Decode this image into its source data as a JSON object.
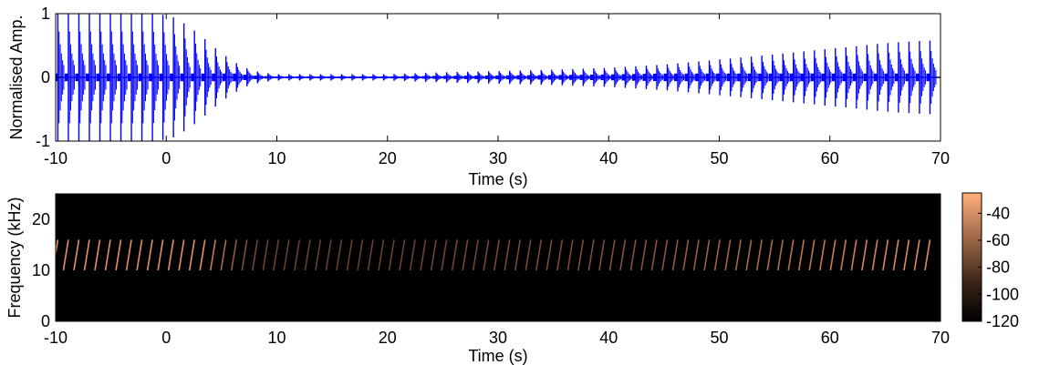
{
  "chart_data": [
    {
      "type": "line",
      "ylabel": "Normalised Amp.",
      "xlabel": "Time (s)",
      "xlim": [
        -10,
        70
      ],
      "ylim": [
        -1,
        1
      ],
      "xticks": [
        -10,
        0,
        10,
        20,
        30,
        40,
        50,
        60,
        70
      ],
      "xtick_labels": [
        "-10",
        "0",
        "10",
        "20",
        "30",
        "40",
        "50",
        "60",
        "70"
      ],
      "yticks": [
        -1,
        0,
        1
      ],
      "ytick_labels": [
        "-1",
        "0",
        "1"
      ],
      "color": "#0000ff",
      "envelope": {
        "t": [
          -9.5,
          -8,
          -6,
          -4,
          -2,
          0,
          1,
          2,
          3,
          4,
          5,
          6,
          7,
          8,
          9,
          10,
          15,
          20,
          25,
          30,
          35,
          40,
          45,
          50,
          55,
          60,
          62,
          64,
          66,
          68,
          69.5
        ],
        "amp": [
          1.0,
          1.0,
          1.0,
          1.0,
          1.0,
          0.98,
          0.92,
          0.8,
          0.68,
          0.52,
          0.38,
          0.26,
          0.16,
          0.1,
          0.07,
          0.05,
          0.05,
          0.05,
          0.08,
          0.1,
          0.12,
          0.15,
          0.2,
          0.28,
          0.36,
          0.45,
          0.48,
          0.52,
          0.55,
          0.57,
          0.58
        ]
      },
      "pulse_period_s": 0.95
    },
    {
      "type": "heatmap",
      "ylabel": "Frequency (kHz)",
      "xlabel": "Time (s)",
      "xlim": [
        -10,
        70
      ],
      "ylim": [
        0,
        25
      ],
      "xticks": [
        -10,
        0,
        10,
        20,
        30,
        40,
        50,
        60,
        70
      ],
      "xtick_labels": [
        "-10",
        "0",
        "10",
        "20",
        "30",
        "40",
        "50",
        "60",
        "70"
      ],
      "yticks": [
        0,
        10,
        20
      ],
      "ytick_labels": [
        "0",
        "10",
        "20"
      ],
      "background": "#000000",
      "chirp_color": "#e8906a",
      "chirp_freq_range_khz": [
        10,
        16
      ],
      "chirp_duration_s": 0.45,
      "colorbar": {
        "range": [
          -120,
          -25
        ],
        "ticks": [
          -40,
          -60,
          -80,
          -100,
          -120
        ],
        "tick_labels": [
          "-40",
          "-60",
          "-80",
          "-100",
          "-120"
        ],
        "colors": [
          "#000000",
          "#ffb07a"
        ]
      }
    }
  ]
}
